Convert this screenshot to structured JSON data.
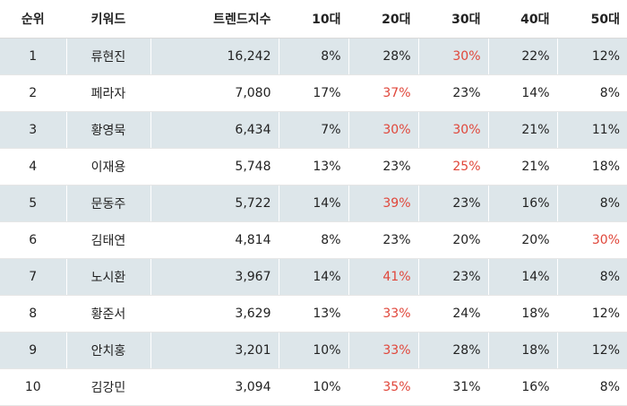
{
  "colors": {
    "highlight": "#e0463a",
    "stripe": "#dde6ea"
  },
  "chart_data": {
    "type": "table",
    "columns": [
      "순위",
      "키워드",
      "트렌드지수",
      "10대",
      "20대",
      "30대",
      "40대",
      "50대"
    ],
    "rows": [
      {
        "rank": "1",
        "keyword": "류현진",
        "index": "16,242",
        "ages": [
          "8%",
          "28%",
          "30%",
          "22%",
          "12%"
        ],
        "highlight": [
          2
        ]
      },
      {
        "rank": "2",
        "keyword": "페라자",
        "index": "7,080",
        "ages": [
          "17%",
          "37%",
          "23%",
          "14%",
          "8%"
        ],
        "highlight": [
          1
        ]
      },
      {
        "rank": "3",
        "keyword": "황영묵",
        "index": "6,434",
        "ages": [
          "7%",
          "30%",
          "30%",
          "21%",
          "11%"
        ],
        "highlight": [
          1,
          2
        ]
      },
      {
        "rank": "4",
        "keyword": "이재용",
        "index": "5,748",
        "ages": [
          "13%",
          "23%",
          "25%",
          "21%",
          "18%"
        ],
        "highlight": [
          2
        ]
      },
      {
        "rank": "5",
        "keyword": "문동주",
        "index": "5,722",
        "ages": [
          "14%",
          "39%",
          "23%",
          "16%",
          "8%"
        ],
        "highlight": [
          1
        ]
      },
      {
        "rank": "6",
        "keyword": "김태연",
        "index": "4,814",
        "ages": [
          "8%",
          "23%",
          "20%",
          "20%",
          "30%"
        ],
        "highlight": [
          4
        ]
      },
      {
        "rank": "7",
        "keyword": "노시환",
        "index": "3,967",
        "ages": [
          "14%",
          "41%",
          "23%",
          "14%",
          "8%"
        ],
        "highlight": [
          1
        ]
      },
      {
        "rank": "8",
        "keyword": "황준서",
        "index": "3,629",
        "ages": [
          "13%",
          "33%",
          "24%",
          "18%",
          "12%"
        ],
        "highlight": [
          1
        ]
      },
      {
        "rank": "9",
        "keyword": "안치홍",
        "index": "3,201",
        "ages": [
          "10%",
          "33%",
          "28%",
          "18%",
          "12%"
        ],
        "highlight": [
          1
        ]
      },
      {
        "rank": "10",
        "keyword": "김강민",
        "index": "3,094",
        "ages": [
          "10%",
          "35%",
          "31%",
          "16%",
          "8%"
        ],
        "highlight": [
          1
        ]
      }
    ]
  }
}
